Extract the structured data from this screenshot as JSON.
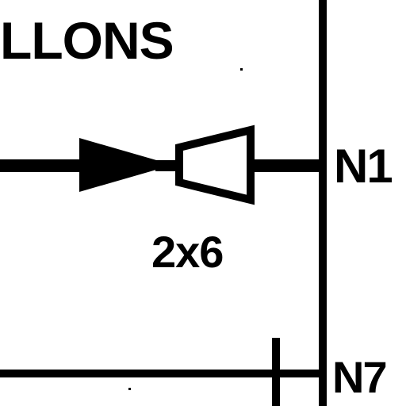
{
  "labels": {
    "title": "LLONS",
    "node_upper": "N1",
    "fitting_size": "2x6",
    "node_lower": "N7"
  },
  "colors": {
    "ink": "#000000",
    "background": "#ffffff"
  },
  "symbols": {
    "flow": "arrow-icon",
    "fitting": "reducer-icon"
  }
}
